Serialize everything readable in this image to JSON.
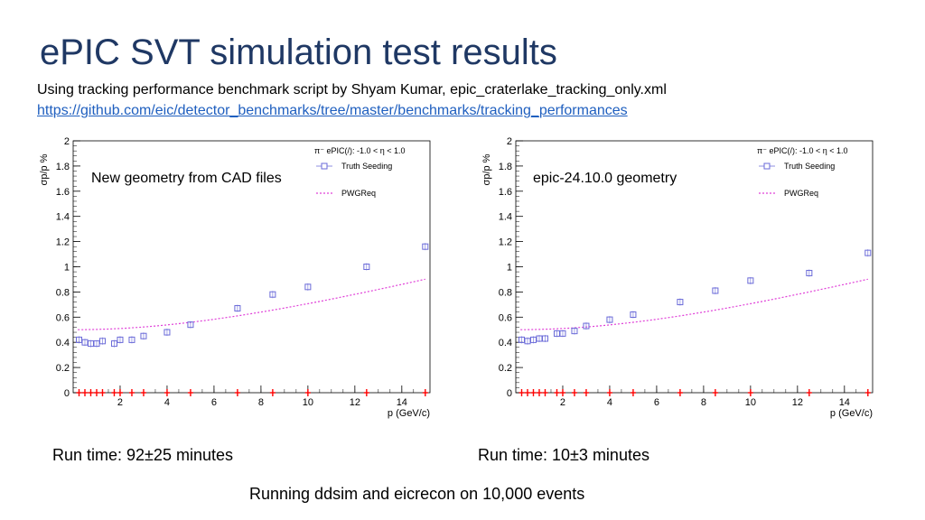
{
  "slide": {
    "title": "ePIC SVT simulation test results",
    "subtitle": "Using tracking performance benchmark script by Shyam Kumar, epic_craterlake_tracking_only.xml",
    "link": "https://github.com/eic/detector_benchmarks/tree/master/benchmarks/tracking_performances",
    "left_label": "New geometry from CAD files",
    "right_label": "epic-24.10.0 geometry",
    "left_runtime": "Run time: 92±25 minutes",
    "right_runtime": "Run time: 10±3 minutes",
    "footer": "Running ddsim and eicrecon on 10,000 events"
  },
  "colors": {
    "title": "#1f3864",
    "truth_seeding": "#6a6ad8",
    "pwgreq": "#e040d8",
    "markers_zero": "#ff0000"
  },
  "chart_data": [
    {
      "type": "scatter",
      "ylabel": "σp/p %",
      "xlabel": "p (GeV/c)",
      "xlim": [
        0,
        15.2
      ],
      "ylim": [
        0,
        2
      ],
      "xticks": [
        2,
        4,
        6,
        8,
        10,
        12,
        14
      ],
      "yticks": [
        0,
        0.2,
        0.4,
        0.6,
        0.8,
        1,
        1.2,
        1.4,
        1.6,
        1.8,
        2
      ],
      "legend": {
        "header": "π⁻ ePIC(/): -1.0 < η < 1.0",
        "entries": [
          "Truth Seeding",
          "PWGReq"
        ],
        "placement": "top-right"
      },
      "series": [
        {
          "name": "Truth Seeding",
          "x": [
            0.25,
            0.5,
            0.75,
            1.0,
            1.25,
            1.75,
            2.0,
            2.5,
            3.0,
            4.0,
            5.0,
            7.0,
            8.5,
            10.0,
            12.5,
            15.0
          ],
          "y": [
            0.42,
            0.4,
            0.39,
            0.39,
            0.41,
            0.39,
            0.42,
            0.42,
            0.45,
            0.48,
            0.54,
            0.67,
            0.78,
            0.84,
            1.0,
            1.16
          ]
        },
        {
          "name": "PWGReq",
          "line": "dotted",
          "formula": "sqrt((0.05*p)^2 + 0.5^2)",
          "x": [
            0.2,
            15.0
          ]
        }
      ],
      "zero_markers_x": [
        0.25,
        0.5,
        0.75,
        1.0,
        1.25,
        1.75,
        2.0,
        2.5,
        3.0,
        4.0,
        5.0,
        7.0,
        8.5,
        10.0,
        12.5,
        15.0
      ]
    },
    {
      "type": "scatter",
      "ylabel": "σp/p %",
      "xlabel": "p (GeV/c)",
      "xlim": [
        0,
        15.2
      ],
      "ylim": [
        0,
        2
      ],
      "xticks": [
        2,
        4,
        6,
        8,
        10,
        12,
        14
      ],
      "yticks": [
        0,
        0.2,
        0.4,
        0.6,
        0.8,
        1,
        1.2,
        1.4,
        1.6,
        1.8,
        2
      ],
      "legend": {
        "header": "π⁻ ePIC(/): -1.0 < η < 1.0",
        "entries": [
          "Truth Seeding",
          "PWGReq"
        ],
        "placement": "top-right"
      },
      "series": [
        {
          "name": "Truth Seeding",
          "x": [
            0.25,
            0.5,
            0.75,
            1.0,
            1.25,
            1.75,
            2.0,
            2.5,
            3.0,
            4.0,
            5.0,
            7.0,
            8.5,
            10.0,
            12.5,
            15.0
          ],
          "y": [
            0.42,
            0.41,
            0.42,
            0.43,
            0.43,
            0.47,
            0.47,
            0.49,
            0.53,
            0.58,
            0.62,
            0.72,
            0.81,
            0.89,
            0.95,
            1.11
          ]
        },
        {
          "name": "PWGReq",
          "line": "dotted",
          "formula": "sqrt((0.05*p)^2 + 0.5^2)",
          "x": [
            0.2,
            15.0
          ]
        }
      ],
      "zero_markers_x": [
        0.25,
        0.5,
        0.75,
        1.0,
        1.25,
        1.75,
        2.0,
        2.5,
        3.0,
        4.0,
        5.0,
        7.0,
        8.5,
        10.0,
        12.5,
        15.0
      ]
    }
  ]
}
